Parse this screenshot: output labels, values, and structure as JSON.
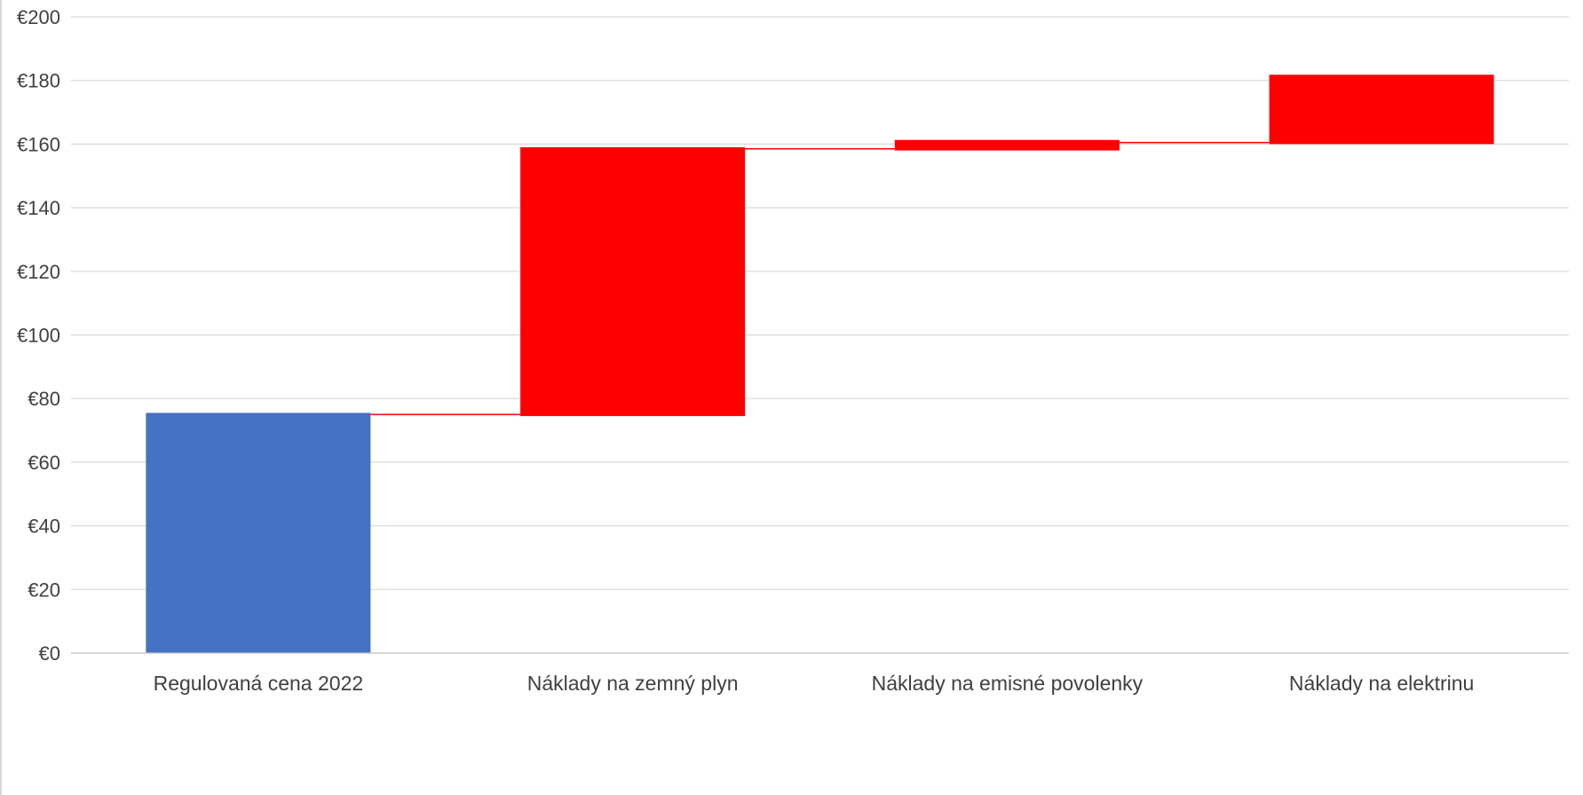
{
  "chart_data": {
    "type": "bar",
    "subtype": "waterfall",
    "title": "",
    "xlabel": "",
    "ylabel": "",
    "ylim": [
      0,
      200
    ],
    "y_ticks": [
      0,
      20,
      40,
      60,
      80,
      100,
      120,
      140,
      160,
      180,
      200
    ],
    "y_tick_labels": [
      "€0",
      "€20",
      "€40",
      "€60",
      "€80",
      "€100",
      "€120",
      "€140",
      "€160",
      "€180",
      "€200"
    ],
    "grid": true,
    "legend": "none",
    "categories": [
      "Regulovaná cena 2022",
      "Náklady na zemný plyn",
      "Náklady na emisné povolenky",
      "Náklady na elektrinu"
    ],
    "bars": [
      {
        "category": "Regulovaná cena 2022",
        "start": 0,
        "end": 75.5,
        "kind": "base"
      },
      {
        "category": "Náklady na zemný plyn",
        "start": 74.5,
        "end": 159,
        "kind": "increase"
      },
      {
        "category": "Náklady na emisné povolenky",
        "start": 158,
        "end": 161.3,
        "kind": "increase"
      },
      {
        "category": "Náklady na elektrinu",
        "start": 160,
        "end": 181.8,
        "kind": "increase"
      }
    ],
    "connectors": [
      75,
      158.5,
      160.5
    ],
    "colors": {
      "base": "#4472C4",
      "increase": "#FF0000",
      "connector": "#FF0000",
      "grid": "#D9D9D9",
      "axis": "#BFBFBF",
      "text": "#404040"
    }
  }
}
